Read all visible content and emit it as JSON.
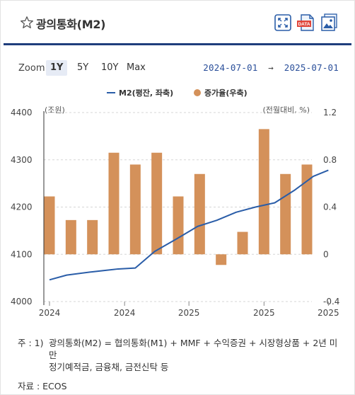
{
  "header": {
    "title": "광의통화(M2)",
    "icons": [
      "star-icon",
      "fullscreen-icon",
      "data-download-icon",
      "image-download-icon"
    ],
    "colors": {
      "accent": "#1f3e7c",
      "icon_blue": "#2a5da8",
      "data_red": "#e0453a"
    },
    "data_badge": "DATA"
  },
  "toolbar": {
    "zoom_label": "Zoom",
    "zoom_options": [
      "1Y",
      "5Y",
      "10Y",
      "Max"
    ],
    "selected_zoom": "1Y",
    "date_from": "2024-07-01",
    "date_arrow": "→",
    "date_to": "2025-07-01"
  },
  "chart_data": {
    "type": "bar+line",
    "legend_position": "top-center",
    "series": [
      {
        "name": "M2(평잔, 좌축)",
        "type": "line",
        "axis": "left",
        "color": "#2a5da8",
        "values": [
          4046,
          4056,
          4063,
          4069,
          4071,
          4106,
          4132,
          4159,
          4172,
          4189,
          4200,
          4209,
          4235,
          4265,
          4278
        ]
      },
      {
        "name": "증가율(우축)",
        "type": "bar",
        "axis": "right",
        "color": "#d4915a",
        "values": [
          0.49,
          0.29,
          0.29,
          0.86,
          0.76,
          0.86,
          0.49,
          0.68,
          -0.09,
          0.19,
          1.06,
          0.68,
          0.76
        ]
      }
    ],
    "line_x_positions": [
      0,
      0.8,
      2.0,
      3.2,
      4.0,
      4.9,
      5.9,
      6.9,
      7.8,
      8.7,
      9.6,
      10.5,
      11.4,
      12.3,
      13.0
    ],
    "bar_count": 13,
    "x_tick_labels": [
      "2024",
      "2024",
      "2025",
      "2025",
      "2025"
    ],
    "x_tick_positions": [
      0,
      3.5,
      6.5,
      10,
      13
    ],
    "left_axis": {
      "unit": "(조원)",
      "ylim": [
        4000,
        4400
      ],
      "ticks": [
        4000,
        4100,
        4200,
        4300,
        4400
      ]
    },
    "right_axis": {
      "unit": "(전월대비, %)",
      "ylim": [
        -0.4,
        1.2
      ],
      "ticks": [
        -0.4,
        0,
        0.4,
        0.8,
        1.2
      ]
    },
    "grid": "horizontal-dashed"
  },
  "notes": {
    "note_prefix": "주 : 1)",
    "note_line1": "광의통화(M2) = 협의통화(M1) + MMF + 수익증권 + 시장형상품 + 2년 미만",
    "note_line2": "정기예적금, 금융채, 금전신탁 등",
    "source": "자료 :  ECOS"
  }
}
